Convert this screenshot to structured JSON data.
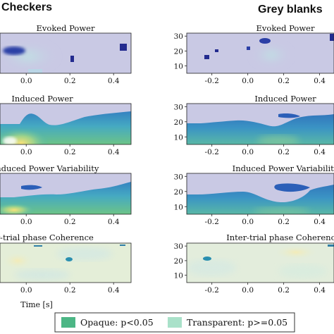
{
  "columns": [
    {
      "title": "Checkers"
    },
    {
      "title": "Grey blanks"
    }
  ],
  "colors": {
    "background_purple": "#c9c9e4",
    "yellow": "#f6e27a",
    "green": "#6cc487",
    "teal": "#4fb7b0",
    "blue": "#2b5fb8",
    "navy": "#232b8f",
    "legend_opaque": "#4cb685",
    "legend_transparent": "#a9e1c9"
  },
  "chart_data": [
    {
      "type": "heatmap",
      "column": "Checkers",
      "title": "Evoked Power",
      "xlabel": "",
      "ylabel": "",
      "x_ticks": [
        "0.0",
        "0.2",
        "0.4"
      ],
      "y_ticks": [],
      "xlim": [
        -0.12,
        0.48
      ],
      "ylim": [
        5,
        32
      ]
    },
    {
      "type": "heatmap",
      "column": "Grey blanks",
      "title": "Evoked Power",
      "xlabel": "",
      "ylabel": "",
      "x_ticks": [
        "-0.2",
        "0.0",
        "0.2",
        "0.4"
      ],
      "y_ticks": [
        "10",
        "20",
        "30"
      ],
      "xlim": [
        -0.34,
        0.48
      ],
      "ylim": [
        5,
        32
      ]
    },
    {
      "type": "heatmap",
      "column": "Checkers",
      "title": "Induced Power",
      "xlabel": "",
      "ylabel": "",
      "x_ticks": [
        "0.0",
        "0.2",
        "0.4"
      ],
      "y_ticks": [],
      "xlim": [
        -0.12,
        0.48
      ],
      "ylim": [
        5,
        32
      ]
    },
    {
      "type": "heatmap",
      "column": "Grey blanks",
      "title": "Induced Power",
      "xlabel": "",
      "ylabel": "",
      "x_ticks": [
        "-0.2",
        "0.0",
        "0.2",
        "0.4"
      ],
      "y_ticks": [
        "10",
        "20",
        "30"
      ],
      "xlim": [
        -0.34,
        0.48
      ],
      "ylim": [
        5,
        32
      ]
    },
    {
      "type": "heatmap",
      "column": "Checkers",
      "title": "Induced Power Variability",
      "xlabel": "",
      "ylabel": "",
      "x_ticks": [
        "0.0",
        "0.2",
        "0.4"
      ],
      "y_ticks": [],
      "xlim": [
        -0.12,
        0.48
      ],
      "ylim": [
        5,
        32
      ]
    },
    {
      "type": "heatmap",
      "column": "Grey blanks",
      "title": "Induced Power Variability",
      "xlabel": "",
      "ylabel": "",
      "x_ticks": [
        "-0.2",
        "0.0",
        "0.2",
        "0.4"
      ],
      "y_ticks": [
        "10",
        "20",
        "30"
      ],
      "xlim": [
        -0.34,
        0.48
      ],
      "ylim": [
        5,
        32
      ]
    },
    {
      "type": "heatmap",
      "column": "Checkers",
      "title": "Inter-trial phase Coherence",
      "xlabel": "Time [s]",
      "ylabel": "",
      "x_ticks": [
        "0.0",
        "0.2",
        "0.4"
      ],
      "y_ticks": [],
      "xlim": [
        -0.12,
        0.48
      ],
      "ylim": [
        5,
        32
      ]
    },
    {
      "type": "heatmap",
      "column": "Grey blanks",
      "title": "Inter-trial phase Coherence",
      "xlabel": "",
      "ylabel": "",
      "x_ticks": [
        "-0.2",
        "0.0",
        "0.2",
        "0.4"
      ],
      "y_ticks": [
        "10",
        "20",
        "30"
      ],
      "xlim": [
        -0.34,
        0.48
      ],
      "ylim": [
        5,
        32
      ]
    }
  ],
  "legend": {
    "opaque_label": "Opaque: p<0.05",
    "transparent_label": "Transparent: p>=0.05"
  }
}
